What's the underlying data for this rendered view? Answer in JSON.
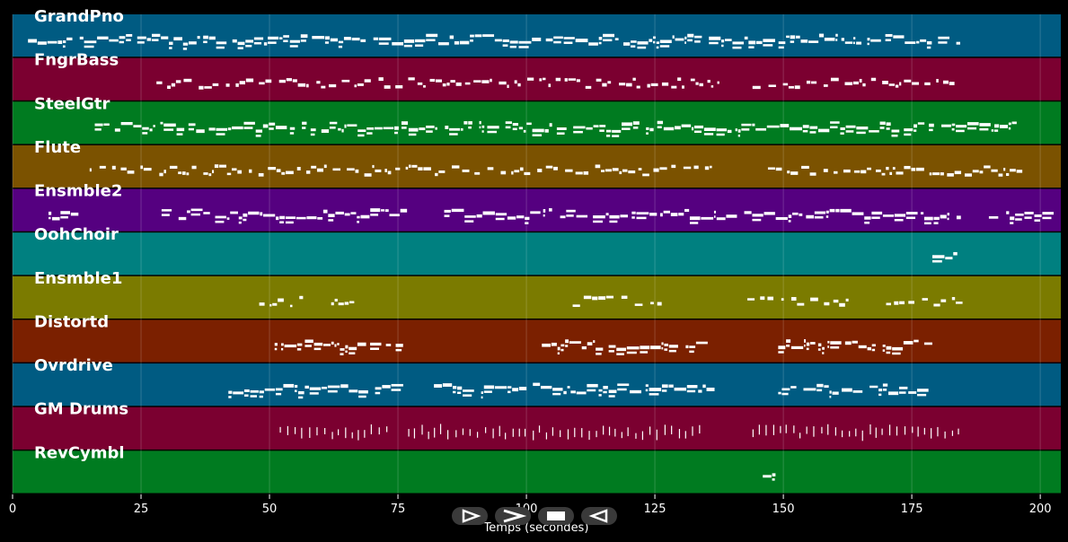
{
  "chart_data": {
    "type": "piano-roll",
    "xlabel": "Temps (secondes)",
    "xlim": [
      0,
      204
    ],
    "xticks": [
      0,
      25,
      50,
      75,
      100,
      125,
      150,
      175,
      200
    ],
    "grid": true,
    "tracks": [
      {
        "name": "GrandPno",
        "color": "#005b82",
        "segments": [
          [
            3,
            185
          ]
        ],
        "density": 0.9
      },
      {
        "name": "FngrBass",
        "color": "#7b0030",
        "segments": [
          [
            28,
            138
          ],
          [
            144,
            185
          ]
        ],
        "density": 0.55
      },
      {
        "name": "SteelGtr",
        "color": "#007b20",
        "segments": [
          [
            16,
            198
          ]
        ],
        "density": 0.85
      },
      {
        "name": "Flute",
        "color": "#7b5200",
        "segments": [
          [
            15,
            137
          ],
          [
            147,
            198
          ]
        ],
        "density": 0.55
      },
      {
        "name": "Ensmble2",
        "color": "#550080",
        "segments": [
          [
            7,
            15
          ],
          [
            29,
            77
          ],
          [
            84,
            185
          ],
          [
            190,
            204
          ]
        ],
        "density": 0.9
      },
      {
        "name": "OohChoir",
        "color": "#008080",
        "segments": [
          [
            179,
            185
          ]
        ],
        "density": 1.0
      },
      {
        "name": "Ensmble1",
        "color": "#7b7b00",
        "segments": [
          [
            48,
            57
          ],
          [
            62,
            67
          ],
          [
            109,
            128
          ],
          [
            143,
            165
          ],
          [
            170,
            185
          ]
        ],
        "density": 0.5
      },
      {
        "name": "Distortd",
        "color": "#7b2000",
        "segments": [
          [
            51,
            77
          ],
          [
            103,
            137
          ],
          [
            149,
            179
          ]
        ],
        "density": 0.85
      },
      {
        "name": "Ovrdrive",
        "color": "#005b82",
        "segments": [
          [
            42,
            77
          ],
          [
            82,
            137
          ],
          [
            149,
            179
          ]
        ],
        "density": 0.85
      },
      {
        "name": "GM Drums",
        "color": "#7b0030",
        "segments": [
          [
            52,
            73
          ],
          [
            77,
            134
          ],
          [
            144,
            185
          ]
        ],
        "density": 0.6
      },
      {
        "name": "RevCymbl",
        "color": "#007b20",
        "segments": [
          [
            146,
            149
          ]
        ],
        "density": 1.0
      }
    ]
  },
  "controls": {
    "play_icon": "play-icon",
    "forward_icon": "fast-forward-icon",
    "stop_icon": "stop-icon",
    "rewind_icon": "rewind-icon"
  }
}
